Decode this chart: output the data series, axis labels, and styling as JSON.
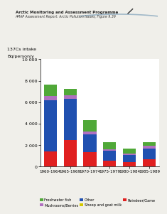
{
  "categories": [
    "1960-1964",
    "1965-1969",
    "1970-1974",
    "1975-1979",
    "1980-1984",
    "1985-1989"
  ],
  "reindeer_game": [
    1380,
    2450,
    1350,
    550,
    400,
    650
  ],
  "sheep_goat_milk": [
    20,
    20,
    20,
    10,
    10,
    10
  ],
  "other": [
    4800,
    3850,
    1600,
    900,
    700,
    1000
  ],
  "mushrooms_berries": [
    350,
    350,
    280,
    130,
    100,
    280
  ],
  "freshwater_fish": [
    1100,
    600,
    1050,
    650,
    450,
    350
  ],
  "colors": {
    "reindeer_game": "#e02020",
    "sheep_goat_milk": "#d4c800",
    "other": "#2050b0",
    "mushrooms_berries": "#b070c0",
    "freshwater_fish": "#50a838"
  },
  "title1": "Arctic Monitoring and Assessment Programme",
  "title2": "AMAP Assessment Report: Arctic Pollution Issues, Figure 9.39",
  "ylabel_line1": "137Cs intake",
  "ylabel_line2": "Bq/person/y",
  "ylim": [
    0,
    10000
  ],
  "yticks": [
    0,
    2000,
    4000,
    6000,
    8000,
    10000
  ],
  "legend_labels": {
    "freshwater_fish": "Freshwater fish",
    "mushrooms_berries": "Mushrooms/Berries",
    "other": "Other",
    "sheep_goat_milk": "Sheep and goat milk",
    "reindeer_game": "Reindeer/Game"
  },
  "bg_color": "#f0efea",
  "plot_bg": "#ffffff"
}
